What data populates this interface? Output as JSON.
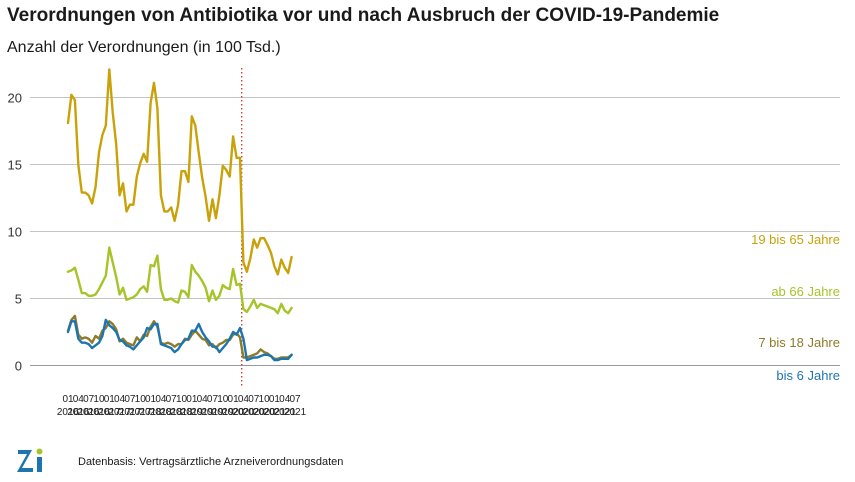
{
  "title": "Verordnungen von Antibiotika vor und nach Ausbruch der COVID-19-Pandemie",
  "subtitle": "Anzahl der Verordnungen (in 100 Tsd.)",
  "source": "Datenbasis: Vertragsärztliche Arzneiverordnungsdaten",
  "logo_text": "Zi",
  "chart_data": {
    "type": "line",
    "title": "Verordnungen von Antibiotika vor und nach Ausbruch der COVID-19-Pandemie",
    "ylabel": "Anzahl der Verordnungen (in 100 Tsd.)",
    "xlabel": "",
    "ylim": [
      0,
      22
    ],
    "yticks": [
      0,
      5,
      10,
      15,
      20
    ],
    "grid": "horizontal",
    "x_start": "2016-01",
    "x_ticks": [
      {
        "month": "01",
        "year": "2016",
        "index": 0
      },
      {
        "month": "04",
        "year": "2016",
        "index": 3
      },
      {
        "month": "07",
        "year": "2016",
        "index": 6
      },
      {
        "month": "10",
        "year": "2016",
        "index": 9
      },
      {
        "month": "01",
        "year": "2017",
        "index": 12
      },
      {
        "month": "04",
        "year": "2017",
        "index": 15
      },
      {
        "month": "07",
        "year": "2017",
        "index": 18
      },
      {
        "month": "10",
        "year": "2017",
        "index": 21
      },
      {
        "month": "01",
        "year": "2018",
        "index": 24
      },
      {
        "month": "04",
        "year": "2018",
        "index": 27
      },
      {
        "month": "07",
        "year": "2018",
        "index": 30
      },
      {
        "month": "10",
        "year": "2018",
        "index": 33
      },
      {
        "month": "01",
        "year": "2019",
        "index": 36
      },
      {
        "month": "04",
        "year": "2019",
        "index": 39
      },
      {
        "month": "07",
        "year": "2019",
        "index": 42
      },
      {
        "month": "10",
        "year": "2019",
        "index": 45
      },
      {
        "month": "01",
        "year": "2020",
        "index": 48
      },
      {
        "month": "04",
        "year": "2020",
        "index": 51
      },
      {
        "month": "07",
        "year": "2020",
        "index": 54
      },
      {
        "month": "10",
        "year": "2020",
        "index": 57
      },
      {
        "month": "01",
        "year": "2021",
        "index": 60
      },
      {
        "month": "04",
        "year": "2021",
        "index": 63
      },
      {
        "month": "07",
        "year": "2021",
        "index": 66
      }
    ],
    "vline": {
      "index": 50.5,
      "color": "#c0392b",
      "style": "dotted"
    },
    "series": [
      {
        "name": "19 bis 65 Jahre",
        "color": "#c9a20a",
        "values": [
          18.1,
          20.2,
          19.8,
          15.0,
          12.9,
          12.9,
          12.7,
          12.1,
          13.3,
          15.9,
          17.2,
          17.9,
          22.1,
          18.9,
          16.5,
          12.7,
          13.6,
          11.5,
          12.0,
          12.0,
          14.1,
          15.1,
          15.8,
          15.2,
          19.6,
          21.1,
          19.2,
          12.7,
          11.5,
          11.5,
          11.8,
          10.8,
          12.0,
          14.5,
          14.5,
          13.7,
          18.6,
          17.9,
          15.9,
          14.0,
          12.6,
          10.8,
          12.4,
          11.0,
          12.7,
          14.9,
          14.6,
          14.1,
          17.1,
          15.5,
          15.5,
          7.7,
          7.0,
          8.0,
          9.4,
          8.8,
          9.5,
          9.5,
          9.0,
          8.4,
          7.4,
          6.8,
          7.9,
          7.3,
          6.9,
          8.1
        ]
      },
      {
        "name": "ab 66 Jahre",
        "color": "#a6c42a",
        "values": [
          7.0,
          7.1,
          7.3,
          6.4,
          5.4,
          5.4,
          5.2,
          5.2,
          5.3,
          5.7,
          6.2,
          6.7,
          8.8,
          7.7,
          6.6,
          5.3,
          5.8,
          4.9,
          5.0,
          5.1,
          5.3,
          5.7,
          5.9,
          5.5,
          7.5,
          7.4,
          8.2,
          5.7,
          4.9,
          4.9,
          5.0,
          4.8,
          4.7,
          5.6,
          5.5,
          5.1,
          7.5,
          7.0,
          6.7,
          6.3,
          5.8,
          4.8,
          5.6,
          4.9,
          5.2,
          6.0,
          5.8,
          5.7,
          7.2,
          6.0,
          6.1,
          4.2,
          4.0,
          4.4,
          4.9,
          4.3,
          4.6,
          4.5,
          4.4,
          4.3,
          4.2,
          3.9,
          4.6,
          4.1,
          3.9,
          4.3
        ]
      },
      {
        "name": "7 bis 18 Jahre",
        "color": "#8e7b2a",
        "values": [
          2.6,
          3.4,
          3.7,
          2.3,
          2.0,
          2.1,
          2.0,
          1.7,
          2.2,
          2.0,
          2.6,
          2.8,
          3.3,
          3.1,
          2.7,
          1.8,
          2.0,
          1.7,
          1.6,
          1.5,
          2.1,
          1.8,
          2.3,
          2.2,
          2.9,
          3.3,
          2.9,
          1.7,
          1.6,
          1.7,
          1.6,
          1.4,
          1.6,
          1.6,
          2.0,
          1.9,
          2.3,
          2.6,
          2.3,
          2.0,
          1.9,
          1.5,
          1.6,
          1.3,
          1.6,
          1.7,
          1.9,
          1.9,
          2.3,
          2.4,
          2.1,
          0.6,
          0.6,
          0.7,
          0.8,
          0.9,
          1.2,
          1.0,
          0.9,
          0.7,
          0.5,
          0.5,
          0.6,
          0.6,
          0.6,
          0.8
        ]
      },
      {
        "name": "bis 6 Jahre",
        "color": "#1d75b0",
        "values": [
          2.5,
          3.3,
          3.3,
          2.0,
          1.7,
          1.7,
          1.6,
          1.3,
          1.5,
          1.7,
          2.2,
          3.4,
          3.0,
          2.8,
          2.5,
          1.9,
          1.8,
          1.5,
          1.4,
          1.2,
          1.5,
          1.8,
          2.1,
          2.8,
          2.7,
          3.1,
          3.1,
          1.6,
          1.5,
          1.4,
          1.3,
          1.0,
          1.2,
          1.6,
          1.9,
          2.0,
          2.6,
          2.6,
          3.1,
          2.5,
          2.1,
          1.8,
          1.4,
          1.4,
          1.0,
          1.3,
          1.6,
          2.0,
          2.5,
          2.3,
          2.8,
          2.0,
          0.4,
          0.5,
          0.6,
          0.6,
          0.7,
          0.8,
          0.8,
          0.7,
          0.4,
          0.4,
          0.5,
          0.5,
          0.5,
          0.8
        ]
      }
    ]
  }
}
